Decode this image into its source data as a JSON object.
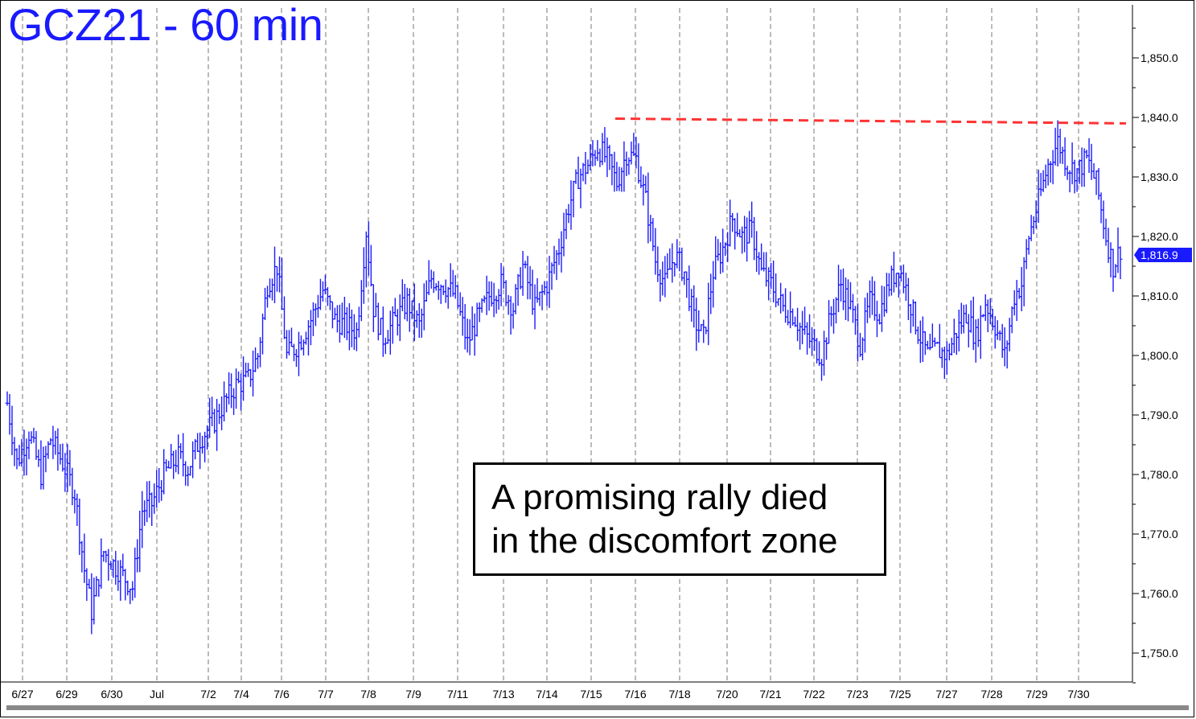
{
  "chart_data": {
    "type": "bar",
    "title": "GCZ21 - 60 min",
    "ylim": [
      1743,
      1862
    ],
    "y_ticks": [
      "1,850.0",
      "1,840.0",
      "1,830.0",
      "1,820.0",
      "1,810.0",
      "1,800.0",
      "1,790.0",
      "1,780.0",
      "1,770.0",
      "1,760.0",
      "1,750.0"
    ],
    "x_ticks": [
      "6/27",
      "6/29",
      "6/30",
      "Jul",
      "7/2",
      "7/4",
      "7/6",
      "7/7",
      "7/8",
      "7/9",
      "7/11",
      "7/13",
      "7/14",
      "7/15",
      "7/16",
      "7/18",
      "7/20",
      "7/21",
      "7/22",
      "7/23",
      "7/25",
      "7/27",
      "7/28",
      "7/29",
      "7/30"
    ],
    "last_price_label": "1,816.9",
    "last_price": 1816.9,
    "resistance_line": {
      "from": 1839.8,
      "to": 1839.0,
      "color": "#ff3333"
    },
    "series_color": "#1a1aff",
    "waypoints": [
      [
        0,
        1792
      ],
      [
        4,
        1782
      ],
      [
        9,
        1787
      ],
      [
        14,
        1780
      ],
      [
        18,
        1786
      ],
      [
        23,
        1782
      ],
      [
        28,
        1777
      ],
      [
        32,
        1764
      ],
      [
        35,
        1757
      ],
      [
        40,
        1767
      ],
      [
        46,
        1764
      ],
      [
        52,
        1761
      ],
      [
        56,
        1774
      ],
      [
        60,
        1775
      ],
      [
        65,
        1780
      ],
      [
        71,
        1783
      ],
      [
        75,
        1781
      ],
      [
        80,
        1786
      ],
      [
        86,
        1789
      ],
      [
        90,
        1792
      ],
      [
        95,
        1795
      ],
      [
        100,
        1796
      ],
      [
        104,
        1800
      ],
      [
        108,
        1812
      ],
      [
        112,
        1815
      ],
      [
        116,
        1800
      ],
      [
        121,
        1802
      ],
      [
        126,
        1806
      ],
      [
        131,
        1811
      ],
      [
        136,
        1806
      ],
      [
        141,
        1805
      ],
      [
        145,
        1804
      ],
      [
        149,
        1821
      ],
      [
        152,
        1808
      ],
      [
        156,
        1803
      ],
      [
        161,
        1806
      ],
      [
        166,
        1809
      ],
      [
        171,
        1805
      ],
      [
        176,
        1813
      ],
      [
        181,
        1812
      ],
      [
        186,
        1810
      ],
      [
        191,
        1802
      ],
      [
        195,
        1806
      ],
      [
        200,
        1810
      ],
      [
        205,
        1812
      ],
      [
        210,
        1808
      ],
      [
        214,
        1815
      ],
      [
        219,
        1808
      ],
      [
        224,
        1812
      ],
      [
        229,
        1818
      ],
      [
        233,
        1825
      ],
      [
        237,
        1830
      ],
      [
        241,
        1832
      ],
      [
        245,
        1835
      ],
      [
        249,
        1833
      ],
      [
        253,
        1829
      ],
      [
        257,
        1834
      ],
      [
        261,
        1833
      ],
      [
        265,
        1826
      ],
      [
        269,
        1816
      ],
      [
        273,
        1812
      ],
      [
        277,
        1817
      ],
      [
        281,
        1814
      ],
      [
        285,
        1806
      ],
      [
        289,
        1803
      ],
      [
        293,
        1814
      ],
      [
        297,
        1818
      ],
      [
        301,
        1823
      ],
      [
        305,
        1820
      ],
      [
        309,
        1821
      ],
      [
        313,
        1814
      ],
      [
        317,
        1812
      ],
      [
        322,
        1808
      ],
      [
        326,
        1807
      ],
      [
        330,
        1804
      ],
      [
        334,
        1802
      ],
      [
        338,
        1800
      ],
      [
        342,
        1807
      ],
      [
        346,
        1812
      ],
      [
        350,
        1808
      ],
      [
        354,
        1802
      ],
      [
        358,
        1809
      ],
      [
        362,
        1807
      ],
      [
        366,
        1812
      ],
      [
        370,
        1815
      ],
      [
        374,
        1810
      ],
      [
        378,
        1804
      ],
      [
        382,
        1800
      ],
      [
        386,
        1801
      ],
      [
        390,
        1800
      ],
      [
        394,
        1804
      ],
      [
        398,
        1807
      ],
      [
        402,
        1803
      ],
      [
        406,
        1809
      ],
      [
        410,
        1805
      ],
      [
        414,
        1800
      ],
      [
        418,
        1810
      ],
      [
        421,
        1812
      ],
      [
        424,
        1820
      ],
      [
        428,
        1826
      ],
      [
        432,
        1832
      ],
      [
        436,
        1836
      ],
      [
        440,
        1832
      ],
      [
        444,
        1831
      ],
      [
        448,
        1833
      ],
      [
        452,
        1829
      ],
      [
        456,
        1820
      ],
      [
        459,
        1815
      ],
      [
        462,
        1818
      ]
    ]
  }
}
